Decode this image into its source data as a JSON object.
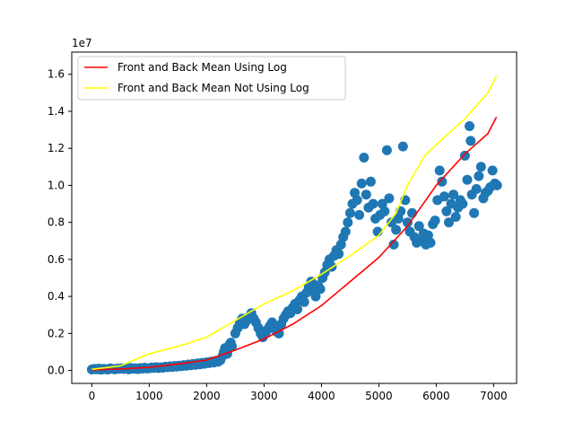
{
  "chart_data": {
    "type": "scatter",
    "title": "",
    "xlabel": "",
    "ylabel": "",
    "offset_text": "1e7",
    "xlim": [
      -350,
      7400
    ],
    "ylim": [
      -700000,
      17200000
    ],
    "x_ticks": [
      0,
      1000,
      2000,
      3000,
      4000,
      5000,
      6000,
      7000
    ],
    "y_ticks": [
      0,
      2000000,
      4000000,
      6000000,
      8000000,
      10000000,
      12000000,
      14000000,
      16000000
    ],
    "x_tick_labels": [
      "0",
      "1000",
      "2000",
      "3000",
      "4000",
      "5000",
      "6000",
      "7000"
    ],
    "y_tick_labels": [
      "0.0",
      "0.2",
      "0.4",
      "0.6",
      "0.8",
      "1.0",
      "1.2",
      "1.4",
      "1.6"
    ],
    "grid": false,
    "legend_position": "top-left",
    "scatter_color": "#1f77b4",
    "scatter_points": [
      [
        0,
        50000
      ],
      [
        40,
        80000
      ],
      [
        80,
        60000
      ],
      [
        120,
        100000
      ],
      [
        160,
        40000
      ],
      [
        200,
        90000
      ],
      [
        240,
        70000
      ],
      [
        280,
        50000
      ],
      [
        320,
        110000
      ],
      [
        360,
        80000
      ],
      [
        400,
        60000
      ],
      [
        440,
        100000
      ],
      [
        480,
        90000
      ],
      [
        520,
        120000
      ],
      [
        560,
        80000
      ],
      [
        600,
        100000
      ],
      [
        640,
        60000
      ],
      [
        680,
        140000
      ],
      [
        720,
        90000
      ],
      [
        760,
        110000
      ],
      [
        800,
        70000
      ],
      [
        840,
        130000
      ],
      [
        880,
        100000
      ],
      [
        920,
        150000
      ],
      [
        960,
        110000
      ],
      [
        1000,
        120000
      ],
      [
        1040,
        160000
      ],
      [
        1080,
        140000
      ],
      [
        1120,
        180000
      ],
      [
        1160,
        130000
      ],
      [
        1200,
        170000
      ],
      [
        1240,
        150000
      ],
      [
        1280,
        200000
      ],
      [
        1320,
        180000
      ],
      [
        1360,
        220000
      ],
      [
        1400,
        190000
      ],
      [
        1440,
        240000
      ],
      [
        1480,
        210000
      ],
      [
        1520,
        260000
      ],
      [
        1560,
        230000
      ],
      [
        1600,
        290000
      ],
      [
        1640,
        250000
      ],
      [
        1680,
        320000
      ],
      [
        1720,
        280000
      ],
      [
        1760,
        350000
      ],
      [
        1800,
        300000
      ],
      [
        1840,
        380000
      ],
      [
        1880,
        330000
      ],
      [
        1920,
        410000
      ],
      [
        1960,
        360000
      ],
      [
        2000,
        440000
      ],
      [
        2040,
        400000
      ],
      [
        2080,
        480000
      ],
      [
        2120,
        430000
      ],
      [
        2160,
        520000
      ],
      [
        2200,
        470000
      ],
      [
        2240,
        560000
      ],
      [
        2280,
        800000
      ],
      [
        2300,
        1000000
      ],
      [
        2320,
        1200000
      ],
      [
        2340,
        1100000
      ],
      [
        2360,
        900000
      ],
      [
        2380,
        1300000
      ],
      [
        2400,
        1400000
      ],
      [
        2420,
        1500000
      ],
      [
        2440,
        1300000
      ],
      [
        2500,
        2000000
      ],
      [
        2540,
        2300000
      ],
      [
        2580,
        2600000
      ],
      [
        2620,
        2800000
      ],
      [
        2660,
        2500000
      ],
      [
        2700,
        2700000
      ],
      [
        2740,
        2900000
      ],
      [
        2780,
        3100000
      ],
      [
        2820,
        2800000
      ],
      [
        2860,
        2600000
      ],
      [
        2900,
        2300000
      ],
      [
        2940,
        2000000
      ],
      [
        2980,
        1800000
      ],
      [
        3020,
        2000000
      ],
      [
        3060,
        2200000
      ],
      [
        3100,
        2400000
      ],
      [
        3140,
        2600000
      ],
      [
        3180,
        2300000
      ],
      [
        3220,
        2100000
      ],
      [
        3260,
        2000000
      ],
      [
        3300,
        2500000
      ],
      [
        3340,
        2800000
      ],
      [
        3380,
        3000000
      ],
      [
        3420,
        3200000
      ],
      [
        3460,
        3100000
      ],
      [
        3500,
        3400000
      ],
      [
        3540,
        3600000
      ],
      [
        3580,
        3300000
      ],
      [
        3620,
        3800000
      ],
      [
        3660,
        4000000
      ],
      [
        3700,
        3700000
      ],
      [
        3740,
        4200000
      ],
      [
        3780,
        4500000
      ],
      [
        3820,
        4800000
      ],
      [
        3860,
        4300000
      ],
      [
        3900,
        4000000
      ],
      [
        3940,
        4600000
      ],
      [
        3980,
        4400000
      ],
      [
        4020,
        5000000
      ],
      [
        4060,
        5300000
      ],
      [
        4100,
        5700000
      ],
      [
        4140,
        6000000
      ],
      [
        4180,
        5600000
      ],
      [
        4220,
        6200000
      ],
      [
        4260,
        6500000
      ],
      [
        4300,
        6300000
      ],
      [
        4340,
        6800000
      ],
      [
        4380,
        7200000
      ],
      [
        4420,
        7500000
      ],
      [
        4460,
        8000000
      ],
      [
        4500,
        8500000
      ],
      [
        4540,
        9000000
      ],
      [
        4580,
        9600000
      ],
      [
        4620,
        9200000
      ],
      [
        4660,
        8400000
      ],
      [
        4700,
        10100000
      ],
      [
        4740,
        11500000
      ],
      [
        4780,
        9500000
      ],
      [
        4820,
        8800000
      ],
      [
        4860,
        10200000
      ],
      [
        4900,
        9000000
      ],
      [
        4940,
        8200000
      ],
      [
        4980,
        7500000
      ],
      [
        5020,
        8400000
      ],
      [
        5060,
        9000000
      ],
      [
        5100,
        8600000
      ],
      [
        5140,
        11900000
      ],
      [
        5180,
        9300000
      ],
      [
        5220,
        8000000
      ],
      [
        5260,
        6800000
      ],
      [
        5300,
        7600000
      ],
      [
        5340,
        8200000
      ],
      [
        5380,
        8600000
      ],
      [
        5420,
        12100000
      ],
      [
        5460,
        9200000
      ],
      [
        5500,
        8000000
      ],
      [
        5540,
        7500000
      ],
      [
        5580,
        8500000
      ],
      [
        5620,
        7200000
      ],
      [
        5660,
        6900000
      ],
      [
        5700,
        7800000
      ],
      [
        5740,
        7000000
      ],
      [
        5780,
        7400000
      ],
      [
        5820,
        6800000
      ],
      [
        5860,
        7300000
      ],
      [
        5900,
        6900000
      ],
      [
        5940,
        7900000
      ],
      [
        5980,
        8100000
      ],
      [
        6020,
        9200000
      ],
      [
        6060,
        10800000
      ],
      [
        6100,
        10200000
      ],
      [
        6140,
        9400000
      ],
      [
        6180,
        8600000
      ],
      [
        6220,
        8000000
      ],
      [
        6260,
        9000000
      ],
      [
        6300,
        9500000
      ],
      [
        6340,
        8300000
      ],
      [
        6380,
        8800000
      ],
      [
        6420,
        9200000
      ],
      [
        6460,
        9000000
      ],
      [
        6500,
        11600000
      ],
      [
        6540,
        10300000
      ],
      [
        6580,
        13200000
      ],
      [
        6600,
        12400000
      ],
      [
        6620,
        9500000
      ],
      [
        6660,
        8500000
      ],
      [
        6700,
        9800000
      ],
      [
        6740,
        10500000
      ],
      [
        6780,
        11000000
      ],
      [
        6820,
        9300000
      ],
      [
        6860,
        9600000
      ],
      [
        6900,
        9700000
      ],
      [
        6940,
        9900000
      ],
      [
        6980,
        10800000
      ],
      [
        7020,
        10100000
      ],
      [
        7060,
        10000000
      ]
    ],
    "series": [
      {
        "name": "Front and Back Mean Using Log",
        "color": "#ff0000",
        "type": "line",
        "x": [
          0,
          500,
          1000,
          1500,
          2000,
          2500,
          3000,
          3500,
          4000,
          4500,
          5000,
          5500,
          6000,
          6500,
          6900,
          7050
        ],
        "y": [
          30000,
          80000,
          170000,
          350000,
          560000,
          1100000,
          1700000,
          2500000,
          3500000,
          4800000,
          6100000,
          7800000,
          10000000,
          11700000,
          12800000,
          13700000
        ]
      },
      {
        "name": "Front and Back Mean Not Using Log",
        "color": "#ffff00",
        "type": "line",
        "x": [
          0,
          500,
          1000,
          1500,
          2000,
          2500,
          3000,
          3500,
          4000,
          4500,
          5000,
          5300,
          5500,
          5800,
          6000,
          6500,
          6900,
          7050
        ],
        "y": [
          60000,
          250000,
          900000,
          1300000,
          1800000,
          2700000,
          3600000,
          4300000,
          5200000,
          6200000,
          7300000,
          8500000,
          10000000,
          11600000,
          12200000,
          13600000,
          15000000,
          15900000
        ]
      }
    ]
  }
}
